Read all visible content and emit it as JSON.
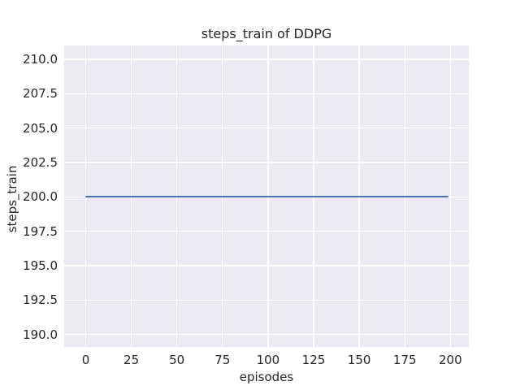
{
  "figure": {
    "background": "#ffffff"
  },
  "chart_data": {
    "type": "line",
    "title": "steps_train of DDPG",
    "xlabel": "episodes",
    "ylabel": "steps_train",
    "x_ticks": [
      0,
      25,
      50,
      75,
      100,
      125,
      150,
      175,
      200
    ],
    "y_ticks": [
      210.0,
      207.5,
      205.0,
      202.5,
      200.0,
      197.5,
      195.0,
      192.5,
      190.0
    ],
    "y_tick_decimals": 1,
    "xlim": [
      -11.8,
      210.1
    ],
    "ylim": [
      189.1,
      211.0
    ],
    "grid": true,
    "legend": false,
    "plot_background": "#eaeaf2",
    "grid_color": "#ffffff",
    "text_color": "#262626",
    "series": [
      {
        "name": "steps_train",
        "color": "#4c72b0",
        "x": [
          0,
          199
        ],
        "y": [
          200,
          200
        ]
      }
    ]
  }
}
